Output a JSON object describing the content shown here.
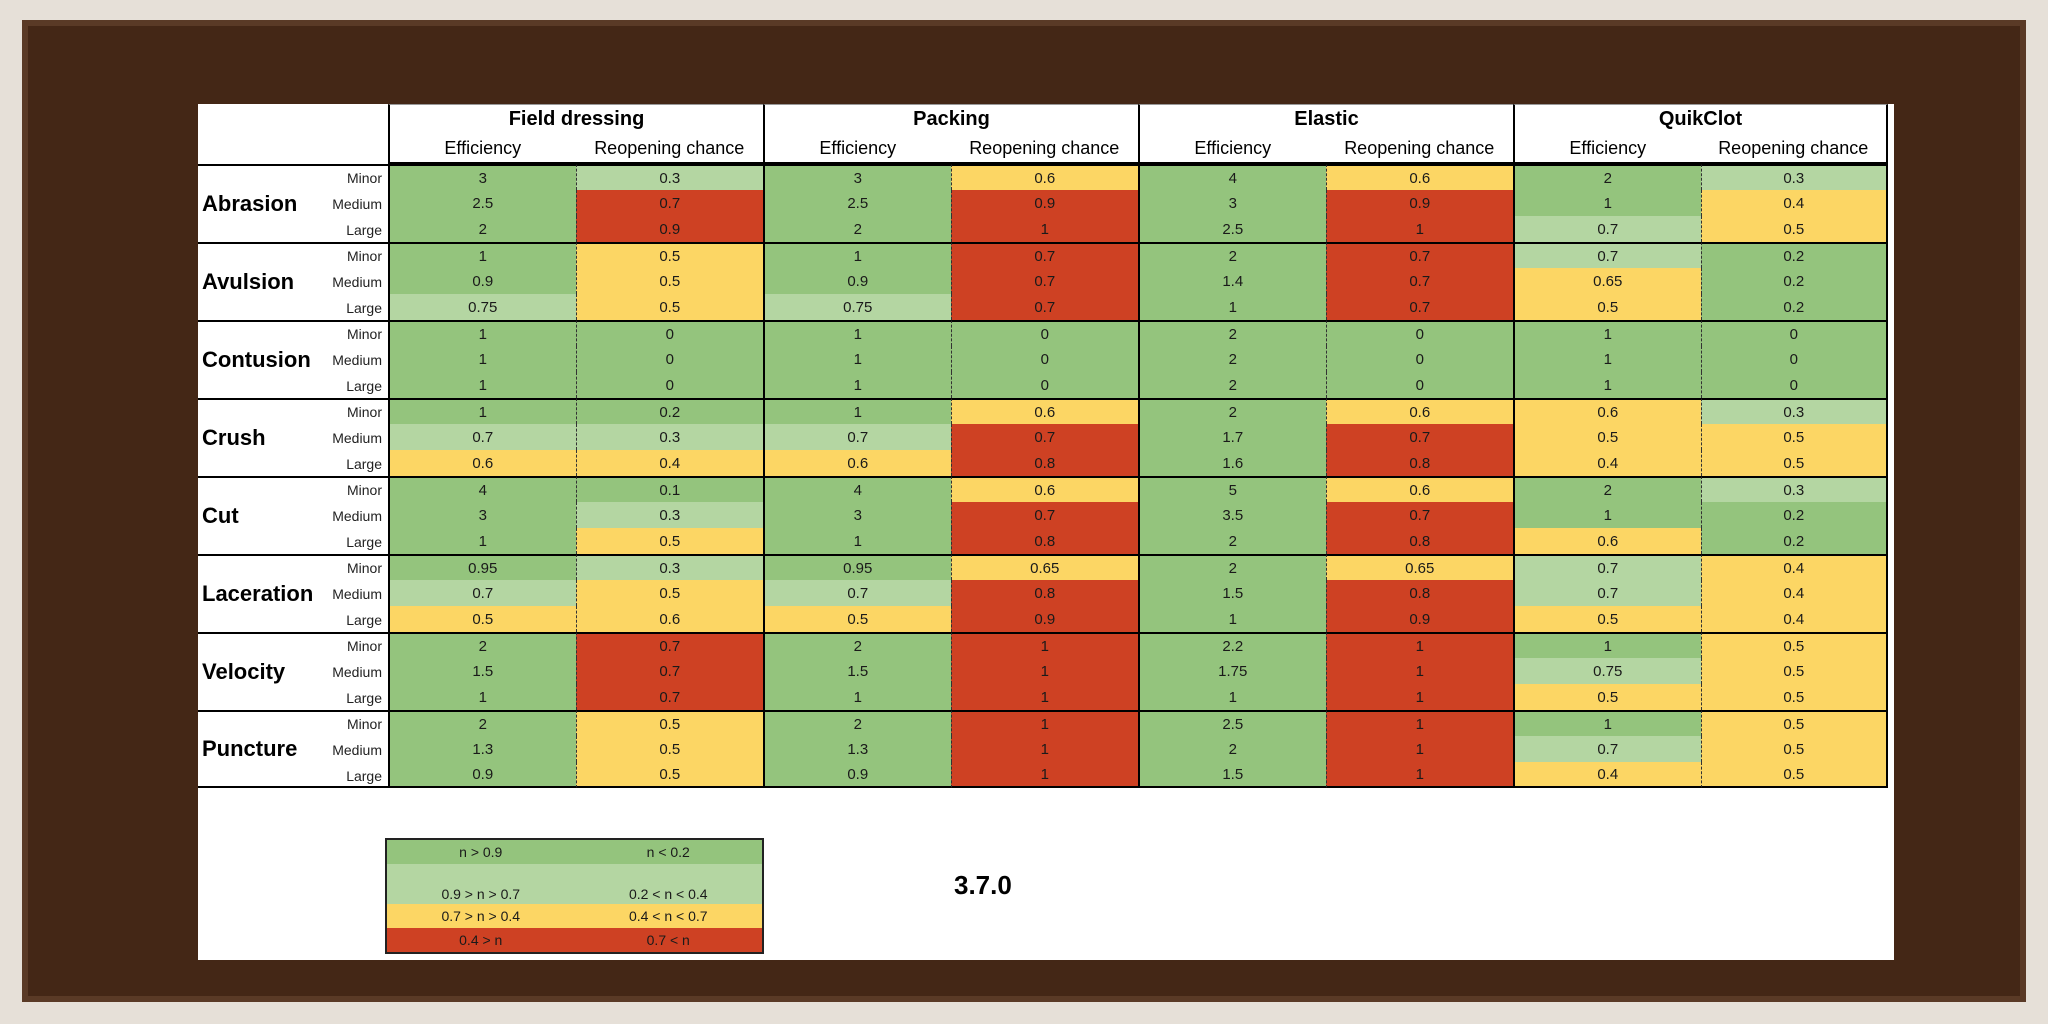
{
  "groups": [
    "Field dressing",
    "Packing",
    "Elastic",
    "QuikClot"
  ],
  "subheaders": {
    "efficiency": "Efficiency",
    "reopening": "Reopening chance"
  },
  "severities": [
    "Minor",
    "Medium",
    "Large"
  ],
  "colors": {
    "g": "#94c47d",
    "l": "#b4d6a2",
    "y": "#fcd664",
    "r": "#ce4123",
    "frame": "#442716"
  },
  "wounds": [
    {
      "name": "Abrasion",
      "rows": [
        [
          [
            "3",
            "g"
          ],
          [
            "0.3",
            "l"
          ],
          [
            "3",
            "g"
          ],
          [
            "0.6",
            "y"
          ],
          [
            "4",
            "g"
          ],
          [
            "0.6",
            "y"
          ],
          [
            "2",
            "g"
          ],
          [
            "0.3",
            "l"
          ]
        ],
        [
          [
            "2.5",
            "g"
          ],
          [
            "0.7",
            "r"
          ],
          [
            "2.5",
            "g"
          ],
          [
            "0.9",
            "r"
          ],
          [
            "3",
            "g"
          ],
          [
            "0.9",
            "r"
          ],
          [
            "1",
            "g"
          ],
          [
            "0.4",
            "y"
          ]
        ],
        [
          [
            "2",
            "g"
          ],
          [
            "0.9",
            "r"
          ],
          [
            "2",
            "g"
          ],
          [
            "1",
            "r"
          ],
          [
            "2.5",
            "g"
          ],
          [
            "1",
            "r"
          ],
          [
            "0.7",
            "l"
          ],
          [
            "0.5",
            "y"
          ]
        ]
      ]
    },
    {
      "name": "Avulsion",
      "rows": [
        [
          [
            "1",
            "g"
          ],
          [
            "0.5",
            "y"
          ],
          [
            "1",
            "g"
          ],
          [
            "0.7",
            "r"
          ],
          [
            "2",
            "g"
          ],
          [
            "0.7",
            "r"
          ],
          [
            "0.7",
            "l"
          ],
          [
            "0.2",
            "g"
          ]
        ],
        [
          [
            "0.9",
            "g"
          ],
          [
            "0.5",
            "y"
          ],
          [
            "0.9",
            "g"
          ],
          [
            "0.7",
            "r"
          ],
          [
            "1.4",
            "g"
          ],
          [
            "0.7",
            "r"
          ],
          [
            "0.65",
            "y"
          ],
          [
            "0.2",
            "g"
          ]
        ],
        [
          [
            "0.75",
            "l"
          ],
          [
            "0.5",
            "y"
          ],
          [
            "0.75",
            "l"
          ],
          [
            "0.7",
            "r"
          ],
          [
            "1",
            "g"
          ],
          [
            "0.7",
            "r"
          ],
          [
            "0.5",
            "y"
          ],
          [
            "0.2",
            "g"
          ]
        ]
      ]
    },
    {
      "name": "Contusion",
      "rows": [
        [
          [
            "1",
            "g"
          ],
          [
            "0",
            "g"
          ],
          [
            "1",
            "g"
          ],
          [
            "0",
            "g"
          ],
          [
            "2",
            "g"
          ],
          [
            "0",
            "g"
          ],
          [
            "1",
            "g"
          ],
          [
            "0",
            "g"
          ]
        ],
        [
          [
            "1",
            "g"
          ],
          [
            "0",
            "g"
          ],
          [
            "1",
            "g"
          ],
          [
            "0",
            "g"
          ],
          [
            "2",
            "g"
          ],
          [
            "0",
            "g"
          ],
          [
            "1",
            "g"
          ],
          [
            "0",
            "g"
          ]
        ],
        [
          [
            "1",
            "g"
          ],
          [
            "0",
            "g"
          ],
          [
            "1",
            "g"
          ],
          [
            "0",
            "g"
          ],
          [
            "2",
            "g"
          ],
          [
            "0",
            "g"
          ],
          [
            "1",
            "g"
          ],
          [
            "0",
            "g"
          ]
        ]
      ]
    },
    {
      "name": "Crush",
      "rows": [
        [
          [
            "1",
            "g"
          ],
          [
            "0.2",
            "g"
          ],
          [
            "1",
            "g"
          ],
          [
            "0.6",
            "y"
          ],
          [
            "2",
            "g"
          ],
          [
            "0.6",
            "y"
          ],
          [
            "0.6",
            "y"
          ],
          [
            "0.3",
            "l"
          ]
        ],
        [
          [
            "0.7",
            "l"
          ],
          [
            "0.3",
            "l"
          ],
          [
            "0.7",
            "l"
          ],
          [
            "0.7",
            "r"
          ],
          [
            "1.7",
            "g"
          ],
          [
            "0.7",
            "r"
          ],
          [
            "0.5",
            "y"
          ],
          [
            "0.5",
            "y"
          ]
        ],
        [
          [
            "0.6",
            "y"
          ],
          [
            "0.4",
            "y"
          ],
          [
            "0.6",
            "y"
          ],
          [
            "0.8",
            "r"
          ],
          [
            "1.6",
            "g"
          ],
          [
            "0.8",
            "r"
          ],
          [
            "0.4",
            "y"
          ],
          [
            "0.5",
            "y"
          ]
        ]
      ]
    },
    {
      "name": "Cut",
      "rows": [
        [
          [
            "4",
            "g"
          ],
          [
            "0.1",
            "g"
          ],
          [
            "4",
            "g"
          ],
          [
            "0.6",
            "y"
          ],
          [
            "5",
            "g"
          ],
          [
            "0.6",
            "y"
          ],
          [
            "2",
            "g"
          ],
          [
            "0.3",
            "l"
          ]
        ],
        [
          [
            "3",
            "g"
          ],
          [
            "0.3",
            "l"
          ],
          [
            "3",
            "g"
          ],
          [
            "0.7",
            "r"
          ],
          [
            "3.5",
            "g"
          ],
          [
            "0.7",
            "r"
          ],
          [
            "1",
            "g"
          ],
          [
            "0.2",
            "g"
          ]
        ],
        [
          [
            "1",
            "g"
          ],
          [
            "0.5",
            "y"
          ],
          [
            "1",
            "g"
          ],
          [
            "0.8",
            "r"
          ],
          [
            "2",
            "g"
          ],
          [
            "0.8",
            "r"
          ],
          [
            "0.6",
            "y"
          ],
          [
            "0.2",
            "g"
          ]
        ]
      ]
    },
    {
      "name": "Laceration",
      "rows": [
        [
          [
            "0.95",
            "g"
          ],
          [
            "0.3",
            "l"
          ],
          [
            "0.95",
            "g"
          ],
          [
            "0.65",
            "y"
          ],
          [
            "2",
            "g"
          ],
          [
            "0.65",
            "y"
          ],
          [
            "0.7",
            "l"
          ],
          [
            "0.4",
            "y"
          ]
        ],
        [
          [
            "0.7",
            "l"
          ],
          [
            "0.5",
            "y"
          ],
          [
            "0.7",
            "l"
          ],
          [
            "0.8",
            "r"
          ],
          [
            "1.5",
            "g"
          ],
          [
            "0.8",
            "r"
          ],
          [
            "0.7",
            "l"
          ],
          [
            "0.4",
            "y"
          ]
        ],
        [
          [
            "0.5",
            "y"
          ],
          [
            "0.6",
            "y"
          ],
          [
            "0.5",
            "y"
          ],
          [
            "0.9",
            "r"
          ],
          [
            "1",
            "g"
          ],
          [
            "0.9",
            "r"
          ],
          [
            "0.5",
            "y"
          ],
          [
            "0.4",
            "y"
          ]
        ]
      ]
    },
    {
      "name": "Velocity",
      "rows": [
        [
          [
            "2",
            "g"
          ],
          [
            "0.7",
            "r"
          ],
          [
            "2",
            "g"
          ],
          [
            "1",
            "r"
          ],
          [
            "2.2",
            "g"
          ],
          [
            "1",
            "r"
          ],
          [
            "1",
            "g"
          ],
          [
            "0.5",
            "y"
          ]
        ],
        [
          [
            "1.5",
            "g"
          ],
          [
            "0.7",
            "r"
          ],
          [
            "1.5",
            "g"
          ],
          [
            "1",
            "r"
          ],
          [
            "1.75",
            "g"
          ],
          [
            "1",
            "r"
          ],
          [
            "0.75",
            "l"
          ],
          [
            "0.5",
            "y"
          ]
        ],
        [
          [
            "1",
            "g"
          ],
          [
            "0.7",
            "r"
          ],
          [
            "1",
            "g"
          ],
          [
            "1",
            "r"
          ],
          [
            "1",
            "g"
          ],
          [
            "1",
            "r"
          ],
          [
            "0.5",
            "y"
          ],
          [
            "0.5",
            "y"
          ]
        ]
      ]
    },
    {
      "name": "Puncture",
      "rows": [
        [
          [
            "2",
            "g"
          ],
          [
            "0.5",
            "y"
          ],
          [
            "2",
            "g"
          ],
          [
            "1",
            "r"
          ],
          [
            "2.5",
            "g"
          ],
          [
            "1",
            "r"
          ],
          [
            "1",
            "g"
          ],
          [
            "0.5",
            "y"
          ]
        ],
        [
          [
            "1.3",
            "g"
          ],
          [
            "0.5",
            "y"
          ],
          [
            "1.3",
            "g"
          ],
          [
            "1",
            "r"
          ],
          [
            "2",
            "g"
          ],
          [
            "1",
            "r"
          ],
          [
            "0.7",
            "l"
          ],
          [
            "0.5",
            "y"
          ]
        ],
        [
          [
            "0.9",
            "g"
          ],
          [
            "0.5",
            "y"
          ],
          [
            "0.9",
            "g"
          ],
          [
            "1",
            "r"
          ],
          [
            "1.5",
            "g"
          ],
          [
            "1",
            "r"
          ],
          [
            "0.4",
            "y"
          ],
          [
            "0.5",
            "y"
          ]
        ]
      ]
    }
  ],
  "legend": [
    {
      "eff": "n > 0.9",
      "reop": "n < 0.2",
      "color": "g"
    },
    {
      "eff": "0.9 > n > 0.7",
      "reop": "0.2 < n < 0.4",
      "color": "l"
    },
    {
      "eff": "0.7 > n > 0.4",
      "reop": "0.4 < n < 0.7",
      "color": "y"
    },
    {
      "eff": "0.4 > n",
      "reop": "0.7 < n",
      "color": "r"
    }
  ],
  "version": "3.7.0"
}
